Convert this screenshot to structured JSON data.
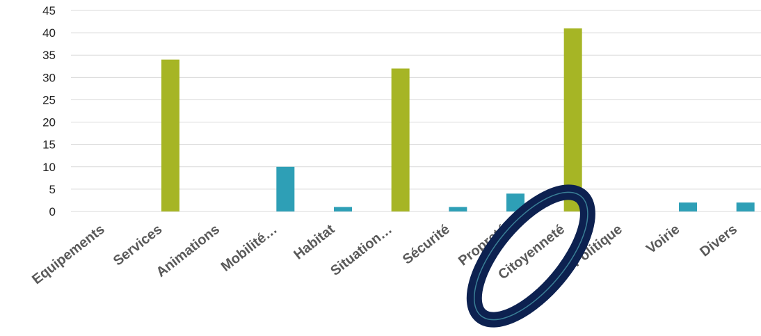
{
  "chart_data": {
    "type": "bar",
    "categories": [
      "Equipements",
      "Services",
      "Animations",
      "Mobilité…",
      "Habitat",
      "Situation…",
      "Sécurité",
      "Propreté",
      "Citoyenneté",
      "Politique",
      "Voirie",
      "Divers"
    ],
    "values": [
      0,
      34,
      0,
      10,
      1,
      32,
      1,
      4,
      41,
      0,
      2,
      2
    ],
    "bar_colors": [
      "#2e9fb6",
      "#a6b525",
      "#2e9fb6",
      "#2e9fb6",
      "#2e9fb6",
      "#a6b525",
      "#2e9fb6",
      "#2e9fb6",
      "#a6b525",
      "#2e9fb6",
      "#2e9fb6",
      "#2e9fb6"
    ],
    "yticks": [
      "0",
      "5",
      "10",
      "15",
      "20",
      "25",
      "30",
      "35",
      "40",
      "45"
    ],
    "ylim": [
      0,
      45
    ],
    "grid": true,
    "title": "",
    "xlabel": "",
    "ylabel": "",
    "annotation": {
      "shape": "ellipse",
      "target_category": "Citoyenneté",
      "color": "#0d2150"
    }
  },
  "colors": {
    "accent_green": "#a6b525",
    "accent_blue": "#2e9fb6",
    "gridline": "#d9d9d9",
    "annotation": "#0d2150"
  }
}
